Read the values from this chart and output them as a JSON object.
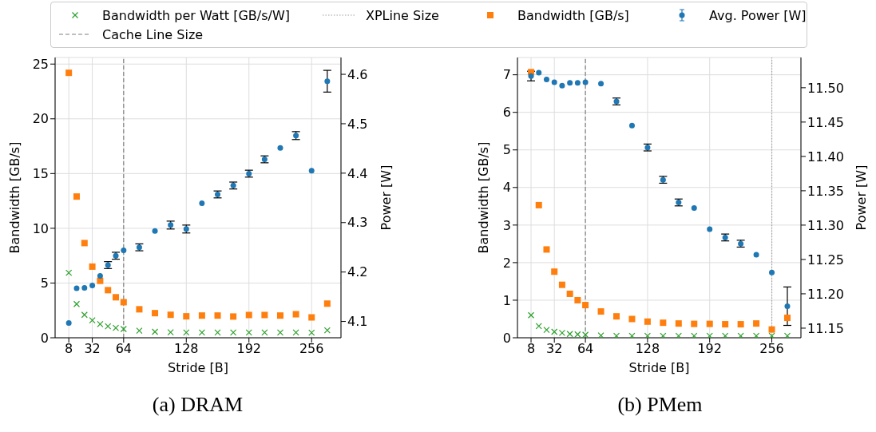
{
  "chart_data": [
    {
      "type": "scatter",
      "title": "(a) DRAM",
      "xlabel": "Stride [B]",
      "ylabel": "Bandwidth [GB/s]",
      "y2label": "Power [W]",
      "x": [
        8,
        16,
        24,
        32,
        40,
        48,
        56,
        64,
        80,
        96,
        112,
        128,
        144,
        160,
        176,
        192,
        208,
        224,
        240,
        256,
        272
      ],
      "series": [
        {
          "name": "Bandwidth per Watt [GB/s/W]",
          "color": "#2ca02c",
          "marker": "cross",
          "values": [
            5.93,
            3.08,
            2.1,
            1.6,
            1.25,
            1.05,
            0.9,
            0.8,
            0.65,
            0.55,
            0.5,
            0.48,
            0.48,
            0.48,
            0.48,
            0.48,
            0.48,
            0.48,
            0.48,
            0.46,
            0.68
          ]
        },
        {
          "name": "Bandwidth [GB/s]",
          "color": "#ff7f0e",
          "marker": "square",
          "values": [
            24.2,
            12.9,
            8.65,
            6.5,
            5.2,
            4.35,
            3.7,
            3.25,
            2.6,
            2.25,
            2.1,
            1.96,
            2.03,
            2.03,
            1.94,
            2.08,
            2.08,
            2.03,
            2.15,
            1.86,
            3.12
          ]
        },
        {
          "name": "Avg. Power [W]",
          "color": "#1f77b4",
          "marker": "circle",
          "axis": "y2",
          "values": [
            4.097,
            4.167,
            4.168,
            4.173,
            4.192,
            4.214,
            4.233,
            4.244,
            4.25,
            4.283,
            4.295,
            4.287,
            4.339,
            4.357,
            4.375,
            4.399,
            4.428,
            4.451,
            4.476,
            4.405,
            4.586
          ],
          "errors": [
            null,
            null,
            null,
            null,
            null,
            0.007,
            0.007,
            null,
            0.007,
            null,
            0.008,
            0.008,
            null,
            0.007,
            0.007,
            0.007,
            0.007,
            null,
            0.008,
            null,
            0.022
          ]
        }
      ],
      "xlim": [
        -6,
        286
      ],
      "xticks": [
        8,
        32,
        64,
        128,
        192,
        256
      ],
      "ylim": [
        0,
        25.6
      ],
      "yticks": [
        0,
        5,
        10,
        15,
        20,
        25
      ],
      "y2lim": [
        4.067,
        4.634
      ],
      "y2ticks": [
        {
          "value": 4.1,
          "label": "4.1"
        },
        {
          "value": 4.2,
          "label": "4.2"
        },
        {
          "value": 4.3,
          "label": "4.3"
        },
        {
          "value": 4.4,
          "label": "4.4"
        },
        {
          "value": 4.5,
          "label": "4.5"
        },
        {
          "value": 4.6,
          "label": "4.6"
        }
      ],
      "ref_lines": [
        {
          "axis": "x",
          "value": 64,
          "label": "Cache Line Size",
          "color": "#808080",
          "line_style": "dashed"
        }
      ],
      "grid": true,
      "legend": "top"
    },
    {
      "type": "scatter",
      "title": "(b) PMem",
      "xlabel": "Stride [B]",
      "ylabel": "Bandwidth [GB/s]",
      "y2label": "Power [W]",
      "x": [
        8,
        16,
        24,
        32,
        40,
        48,
        56,
        64,
        80,
        96,
        112,
        128,
        144,
        160,
        176,
        192,
        208,
        224,
        240,
        256,
        272
      ],
      "series": [
        {
          "color": "#2ca02c",
          "marker": "cross",
          "values": [
            0.6,
            0.31,
            0.21,
            0.16,
            0.13,
            0.1,
            0.09,
            0.08,
            0.06,
            0.05,
            0.05,
            0.05,
            0.05,
            0.05,
            0.05,
            0.05,
            0.05,
            0.05,
            0.05,
            0.05,
            0.05
          ]
        },
        {
          "color": "#ff7f0e",
          "marker": "square",
          "values": [
            7.07,
            3.53,
            2.35,
            1.76,
            1.41,
            1.17,
            1.0,
            0.87,
            0.7,
            0.57,
            0.5,
            0.43,
            0.4,
            0.38,
            0.37,
            0.37,
            0.36,
            0.36,
            0.38,
            0.22,
            0.53
          ]
        },
        {
          "color": "#1f77b4",
          "marker": "circle",
          "axis": "y2",
          "values": [
            11.517,
            11.522,
            11.512,
            11.508,
            11.503,
            11.507,
            11.507,
            11.508,
            11.506,
            11.48,
            11.445,
            11.413,
            11.366,
            11.333,
            11.325,
            11.294,
            11.282,
            11.273,
            11.257,
            11.231,
            11.182
          ],
          "errors": [
            0.007,
            null,
            null,
            null,
            null,
            null,
            null,
            null,
            null,
            0.005,
            null,
            0.005,
            0.005,
            0.005,
            null,
            null,
            0.005,
            0.005,
            null,
            null,
            0.028
          ]
        }
      ],
      "xlim": [
        -6,
        286
      ],
      "xticks": [
        8,
        32,
        64,
        128,
        192,
        256
      ],
      "ylim": [
        0,
        7.46
      ],
      "yticks": [
        0,
        1,
        2,
        3,
        4,
        5,
        6,
        7
      ],
      "y2lim": [
        11.136,
        11.544
      ],
      "y2ticks": [
        {
          "value": 11.15,
          "label": "11.15"
        },
        {
          "value": 11.2,
          "label": "11.20"
        },
        {
          "value": 11.25,
          "label": "11.25"
        },
        {
          "value": 11.3,
          "label": "11.30"
        },
        {
          "value": 11.35,
          "label": "11.35"
        },
        {
          "value": 11.4,
          "label": "11.40"
        },
        {
          "value": 11.45,
          "label": "11.45"
        },
        {
          "value": 11.5,
          "label": "11.50"
        }
      ],
      "ref_lines": [
        {
          "axis": "x",
          "value": 256,
          "label": "XPLine Size",
          "color": "#a0a0a0",
          "line_style": "dotted"
        },
        {
          "axis": "x",
          "value": 64,
          "color": "#808080",
          "line_style": "dashed"
        }
      ],
      "grid": true,
      "legend": "top"
    }
  ]
}
